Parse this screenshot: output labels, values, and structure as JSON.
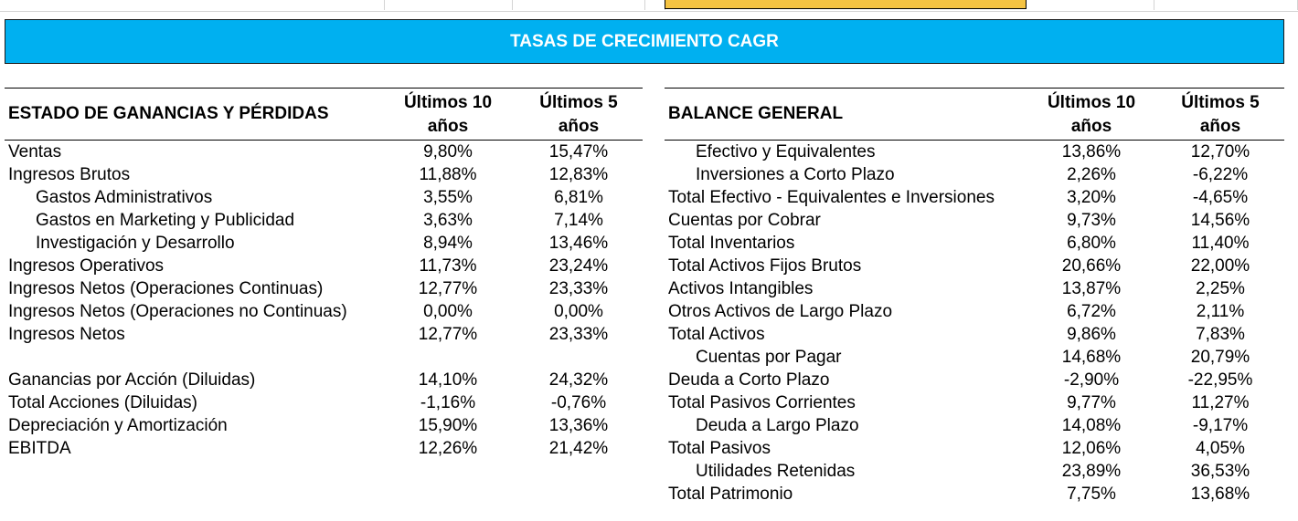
{
  "colors": {
    "banner_bg": "#00b0f0",
    "banner_text": "#ffffff",
    "selected_cell": "#f5c342"
  },
  "banner": {
    "title": "TASAS DE CRECIMIENTO CAGR"
  },
  "income_statement": {
    "title": "ESTADO DE GANANCIAS Y PÉRDIDAS",
    "col10_line1": "Últimos 10",
    "col10_line2": "años",
    "col5_line1": "Últimos 5",
    "col5_line2": "años",
    "rows": [
      {
        "label": "Ventas",
        "indent": false,
        "v10": "9,80%",
        "v5": "15,47%"
      },
      {
        "label": "Ingresos Brutos",
        "indent": false,
        "v10": "11,88%",
        "v5": "12,83%"
      },
      {
        "label": "Gastos Administrativos",
        "indent": true,
        "v10": "3,55%",
        "v5": "6,81%"
      },
      {
        "label": "Gastos en Marketing y Publicidad",
        "indent": true,
        "v10": "3,63%",
        "v5": "7,14%"
      },
      {
        "label": "Investigación y Desarrollo",
        "indent": true,
        "v10": "8,94%",
        "v5": "13,46%"
      },
      {
        "label": "Ingresos Operativos",
        "indent": false,
        "v10": "11,73%",
        "v5": "23,24%"
      },
      {
        "label": "Ingresos Netos (Operaciones Continuas)",
        "indent": false,
        "v10": "12,77%",
        "v5": "23,33%"
      },
      {
        "label": "Ingresos Netos (Operaciones no Continuas)",
        "indent": false,
        "v10": "0,00%",
        "v5": "0,00%"
      },
      {
        "label": "Ingresos Netos",
        "indent": false,
        "v10": "12,77%",
        "v5": "23,33%"
      },
      {
        "label": "",
        "indent": false,
        "v10": "",
        "v5": ""
      },
      {
        "label": "Ganancias por Acción (Diluidas)",
        "indent": false,
        "v10": "14,10%",
        "v5": "24,32%"
      },
      {
        "label": "Total Acciones (Diluidas)",
        "indent": false,
        "v10": "-1,16%",
        "v5": "-0,76%"
      },
      {
        "label": "Depreciación y Amortización",
        "indent": false,
        "v10": "15,90%",
        "v5": "13,36%"
      },
      {
        "label": "EBITDA",
        "indent": false,
        "v10": "12,26%",
        "v5": "21,42%"
      }
    ]
  },
  "balance_sheet": {
    "title": "BALANCE GENERAL",
    "col10_line1": "Últimos 10",
    "col10_line2": "años",
    "col5_line1": "Últimos 5",
    "col5_line2": "años",
    "rows": [
      {
        "label": "Efectivo y Equivalentes",
        "indent": true,
        "v10": "13,86%",
        "v5": "12,70%"
      },
      {
        "label": "Inversiones a Corto Plazo",
        "indent": true,
        "v10": "2,26%",
        "v5": "-6,22%"
      },
      {
        "label": "Total Efectivo - Equivalentes e Inversiones",
        "indent": false,
        "v10": "3,20%",
        "v5": "-4,65%"
      },
      {
        "label": "Cuentas por Cobrar",
        "indent": false,
        "v10": "9,73%",
        "v5": "14,56%"
      },
      {
        "label": "Total Inventarios",
        "indent": false,
        "v10": "6,80%",
        "v5": "11,40%"
      },
      {
        "label": "Total Activos Fijos Brutos",
        "indent": false,
        "v10": "20,66%",
        "v5": "22,00%"
      },
      {
        "label": "Activos Intangibles",
        "indent": false,
        "v10": "13,87%",
        "v5": "2,25%"
      },
      {
        "label": "Otros Activos de Largo Plazo",
        "indent": false,
        "v10": "6,72%",
        "v5": "2,11%"
      },
      {
        "label": "Total Activos",
        "indent": false,
        "v10": "9,86%",
        "v5": "7,83%"
      },
      {
        "label": "Cuentas por Pagar",
        "indent": true,
        "v10": "14,68%",
        "v5": "20,79%"
      },
      {
        "label": "Deuda a Corto Plazo",
        "indent": false,
        "v10": "-2,90%",
        "v5": "-22,95%"
      },
      {
        "label": "Total Pasivos Corrientes",
        "indent": false,
        "v10": "9,77%",
        "v5": "11,27%"
      },
      {
        "label": "Deuda a Largo Plazo",
        "indent": true,
        "v10": "14,08%",
        "v5": "-9,17%"
      },
      {
        "label": "Total Pasivos",
        "indent": false,
        "v10": "12,06%",
        "v5": "4,05%"
      },
      {
        "label": "Utilidades Retenidas",
        "indent": true,
        "v10": "23,89%",
        "v5": "36,53%"
      },
      {
        "label": "Total Patrimonio",
        "indent": false,
        "v10": "7,75%",
        "v5": "13,68%"
      }
    ]
  }
}
